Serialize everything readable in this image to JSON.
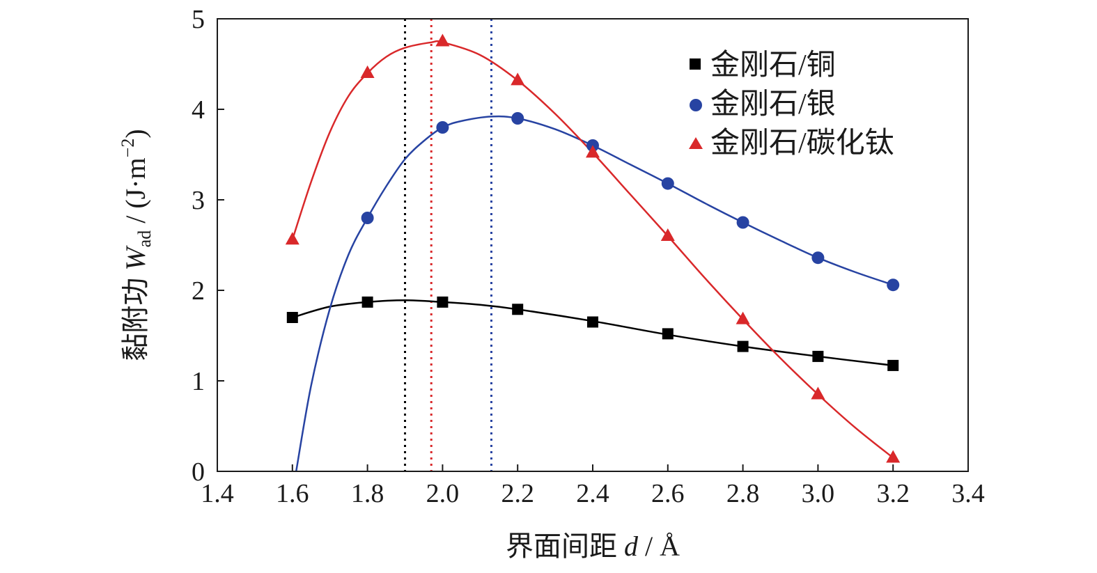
{
  "chart_data": {
    "type": "line",
    "title": "",
    "xlabel": {
      "prefix": "界面间距 ",
      "symbol": "d",
      "suffix": " / Å"
    },
    "ylabel": {
      "prefix": "黏附功 ",
      "symbol": "W",
      "subscript": "ad",
      "unit_open": " / (J·m",
      "exponent": "−2",
      "unit_close": ")"
    },
    "xlim": [
      1.4,
      3.4
    ],
    "ylim": [
      0,
      5
    ],
    "xticks": [
      1.4,
      1.6,
      1.8,
      2.0,
      2.2,
      2.4,
      2.6,
      2.8,
      3.0,
      3.2,
      3.4
    ],
    "xtick_labels": [
      "1.4",
      "1.6",
      "1.8",
      "2.0",
      "2.2",
      "2.4",
      "2.6",
      "2.8",
      "3.0",
      "3.2",
      "3.4"
    ],
    "yticks": [
      0,
      1,
      2,
      3,
      4,
      5
    ],
    "ytick_labels": [
      "0",
      "1",
      "2",
      "3",
      "4",
      "5"
    ],
    "grid": false,
    "legend_position": "top-right",
    "series": [
      {
        "name": "金刚石/铜",
        "color": "#000000",
        "marker": "square",
        "x": [
          1.6,
          1.8,
          2.0,
          2.2,
          2.4,
          2.6,
          2.8,
          3.0,
          3.2
        ],
        "y": [
          1.7,
          1.87,
          1.87,
          1.79,
          1.65,
          1.52,
          1.38,
          1.27,
          1.17
        ],
        "fit_x": [
          1.6,
          1.7,
          1.8,
          1.9,
          2.0,
          2.1,
          2.2,
          2.4,
          2.6,
          2.8,
          3.0,
          3.2
        ],
        "fit_y": [
          1.7,
          1.82,
          1.87,
          1.89,
          1.87,
          1.84,
          1.79,
          1.66,
          1.51,
          1.38,
          1.27,
          1.17
        ],
        "peak_x": 1.9
      },
      {
        "name": "金刚石/银",
        "color": "#2743a2",
        "marker": "circle",
        "x": [
          1.8,
          2.0,
          2.2,
          2.4,
          2.6,
          2.8,
          3.0,
          3.2
        ],
        "y": [
          2.8,
          3.8,
          3.9,
          3.6,
          3.18,
          2.75,
          2.36,
          2.06
        ],
        "fit_x": [
          1.61,
          1.65,
          1.7,
          1.75,
          1.8,
          1.85,
          1.9,
          1.95,
          2.0,
          2.05,
          2.13,
          2.2,
          2.3,
          2.4,
          2.5,
          2.6,
          2.7,
          2.8,
          2.9,
          3.0,
          3.1,
          3.2
        ],
        "fit_y": [
          0.0,
          0.95,
          1.8,
          2.4,
          2.8,
          3.15,
          3.45,
          3.65,
          3.8,
          3.87,
          3.92,
          3.9,
          3.78,
          3.6,
          3.39,
          3.18,
          2.96,
          2.75,
          2.55,
          2.36,
          2.2,
          2.06
        ],
        "peak_x": 2.13
      },
      {
        "name": "金刚石/碳化钛",
        "color": "#d9282a",
        "marker": "triangle",
        "x": [
          1.6,
          1.8,
          2.0,
          2.2,
          2.4,
          2.6,
          2.8,
          3.0,
          3.2
        ],
        "y": [
          2.56,
          4.4,
          4.75,
          4.32,
          3.52,
          2.6,
          1.68,
          0.85,
          0.15
        ],
        "fit_x": [
          1.6,
          1.65,
          1.7,
          1.75,
          1.8,
          1.85,
          1.9,
          1.97,
          2.0,
          2.1,
          2.2,
          2.3,
          2.4,
          2.5,
          2.6,
          2.7,
          2.8,
          2.9,
          3.0,
          3.1,
          3.2
        ],
        "fit_y": [
          2.56,
          3.2,
          3.75,
          4.15,
          4.4,
          4.58,
          4.68,
          4.74,
          4.74,
          4.6,
          4.32,
          3.95,
          3.52,
          3.06,
          2.6,
          2.13,
          1.68,
          1.25,
          0.85,
          0.48,
          0.15
        ],
        "peak_x": 1.97
      }
    ]
  }
}
